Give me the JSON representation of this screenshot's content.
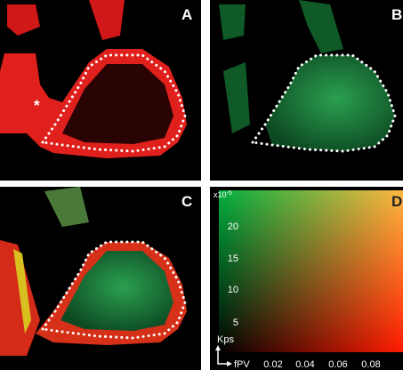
{
  "panels": [
    {
      "label": "A",
      "annotation": "*"
    },
    {
      "label": "B"
    },
    {
      "label": "C"
    },
    {
      "label": "D",
      "y_axis": {
        "label": "Kps",
        "multiplier": {
          "base": "x10",
          "exponent": "-5"
        },
        "ticks": [
          "20",
          "15",
          "10",
          "5"
        ]
      },
      "x_axis": {
        "label": "fPV",
        "ticks": [
          "0.02",
          "0.04",
          "0.06",
          "0.08"
        ]
      }
    }
  ]
}
